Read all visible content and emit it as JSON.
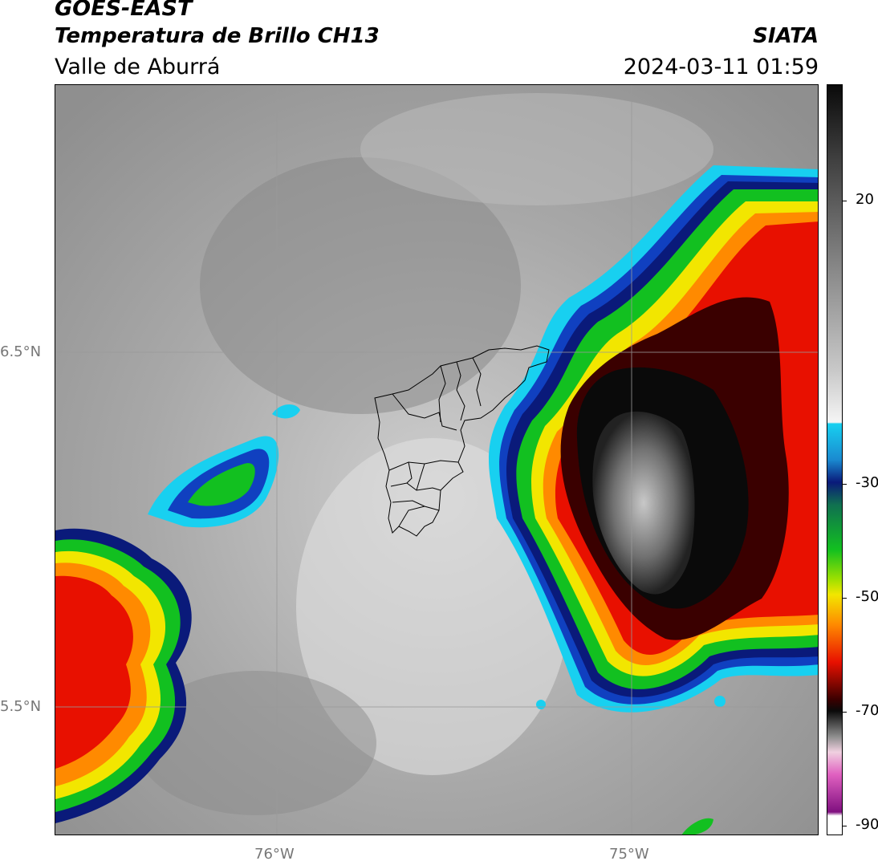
{
  "header": {
    "satellite": "GOES-EAST",
    "product": "Temperatura de Brillo CH13",
    "region": "Valle de Aburrá",
    "agency": "SIATA",
    "datetime": "2024-03-11 01:59"
  },
  "axes": {
    "lat_labels": [
      "6.5°N",
      "5.5°N"
    ],
    "lon_labels": [
      "76°W",
      "75°W"
    ]
  },
  "colorbar": {
    "ticks": [
      "20",
      "-30",
      "-50",
      "-70",
      "-90"
    ],
    "colors": {
      "cyan": "#18d0f0",
      "blue": "#1040c0",
      "navy": "#0a1a7a",
      "green": "#12c020",
      "yellow": "#f2e600",
      "orange": "#ff8a00",
      "red": "#e81000",
      "darkred": "#3a0000",
      "black": "#0a0a0a",
      "pink": "#e060c0",
      "purple": "#801080"
    }
  },
  "map": {
    "overlay": "municipal-boundaries",
    "background": "grayscale-brightness-temperature"
  }
}
